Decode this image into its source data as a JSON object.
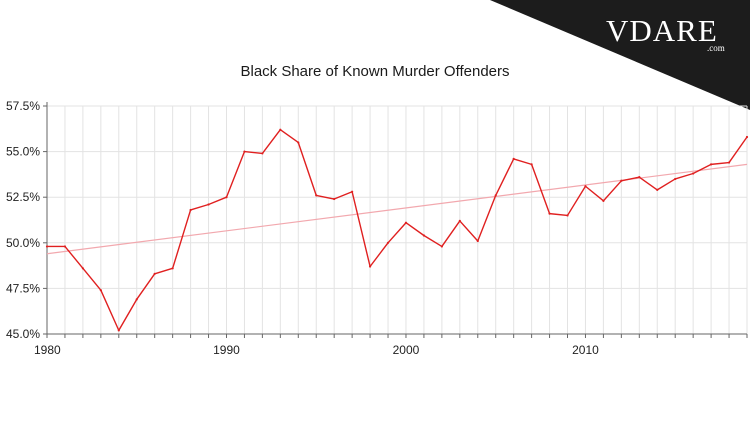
{
  "brand": {
    "logo_text": "VDARE",
    "logo_suffix": ".com"
  },
  "colors": {
    "series": "#e02020",
    "trend": "#f2a8ae",
    "grid": "#e3e3e3",
    "axis": "#666666",
    "corner_band": "#1c1c1c"
  },
  "chart_data": {
    "type": "line",
    "title": "Black Share of Known Murder Offenders",
    "xlabel": "",
    "ylabel": "",
    "xlim": [
      1980,
      2019
    ],
    "ylim": [
      45.0,
      57.5
    ],
    "x_ticks": [
      1980,
      1990,
      2000,
      2010
    ],
    "x_tick_labels": [
      "1980",
      "1990",
      "2000",
      "2010"
    ],
    "y_ticks": [
      45.0,
      47.5,
      50.0,
      52.5,
      55.0,
      57.5
    ],
    "y_tick_labels": [
      "45.0%",
      "47.5%",
      "50.0%",
      "52.5%",
      "55.0%",
      "57.5%"
    ],
    "grid": true,
    "legend": "none",
    "series": [
      {
        "x": [
          1980,
          1981,
          1982,
          1983,
          1984,
          1985,
          1986,
          1987,
          1988,
          1989,
          1990,
          1991,
          1992,
          1993,
          1994,
          1995,
          1996,
          1997,
          1998,
          1999,
          2000,
          2001,
          2002,
          2003,
          2004,
          2005,
          2006,
          2007,
          2008,
          2009,
          2010,
          2011,
          2012,
          2013,
          2014,
          2015,
          2016,
          2017,
          2018,
          2019
        ],
        "y": [
          49.8,
          49.8,
          48.6,
          47.4,
          45.2,
          46.9,
          48.3,
          48.6,
          51.8,
          52.1,
          52.5,
          55.0,
          54.9,
          56.2,
          55.5,
          52.6,
          52.4,
          52.8,
          48.7,
          50.0,
          51.1,
          50.4,
          49.8,
          51.2,
          50.1,
          52.6,
          54.6,
          54.3,
          51.6,
          51.5,
          53.1,
          52.3,
          53.4,
          53.6,
          52.9,
          53.5,
          53.8,
          54.3,
          54.4,
          55.8
        ]
      },
      {
        "x": [
          1980,
          2019
        ],
        "y": [
          49.4,
          54.3
        ]
      }
    ]
  }
}
